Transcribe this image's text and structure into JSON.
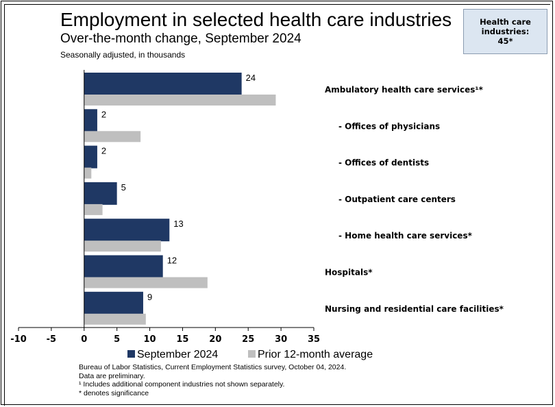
{
  "header": {
    "title": "Employment in selected health care industries",
    "subtitle": "Over-the-month change, September 2024",
    "note": "Seasonally adjusted, in thousands"
  },
  "callout": {
    "lines": [
      "Health care",
      "industries:",
      "45*"
    ]
  },
  "legend": {
    "items": [
      {
        "label": "September 2024",
        "color": "#1f3864"
      },
      {
        "label": "Prior 12-month average",
        "color": "#bfbfbf"
      }
    ]
  },
  "footnotes": {
    "source": "Bureau of Labor Statistics, Current Employment Statistics survey, October 04, 2024.",
    "preliminary": "Data are preliminary.",
    "footnote1": "¹ Includes additional component industries not shown separately.",
    "significance": "* denotes significance"
  },
  "chart_data": {
    "type": "bar",
    "orientation": "horizontal",
    "categories": [
      "Ambulatory health care services¹*",
      "- Offices of physicians",
      "- Offices of dentists",
      "- Outpatient care centers",
      "- Home health care services*",
      "Hospitals*",
      "Nursing and residential care facilities*"
    ],
    "series": [
      {
        "name": "September 2024",
        "color": "#1f3864",
        "values": [
          24,
          2,
          2,
          5,
          13,
          12,
          9
        ],
        "data_labels": [
          "24",
          "2",
          "2",
          "5",
          "13",
          "12",
          "9"
        ]
      },
      {
        "name": "Prior 12-month average",
        "color": "#bfbfbf",
        "values": [
          29.2,
          8.6,
          1.1,
          2.8,
          11.7,
          18.8,
          9.4
        ]
      }
    ],
    "xlim": [
      -10,
      35
    ],
    "xticks": [
      "-10",
      "-5",
      "0",
      "5",
      "10",
      "15",
      "20",
      "25",
      "30",
      "35"
    ],
    "grid": false,
    "legend_position": "bottom"
  }
}
